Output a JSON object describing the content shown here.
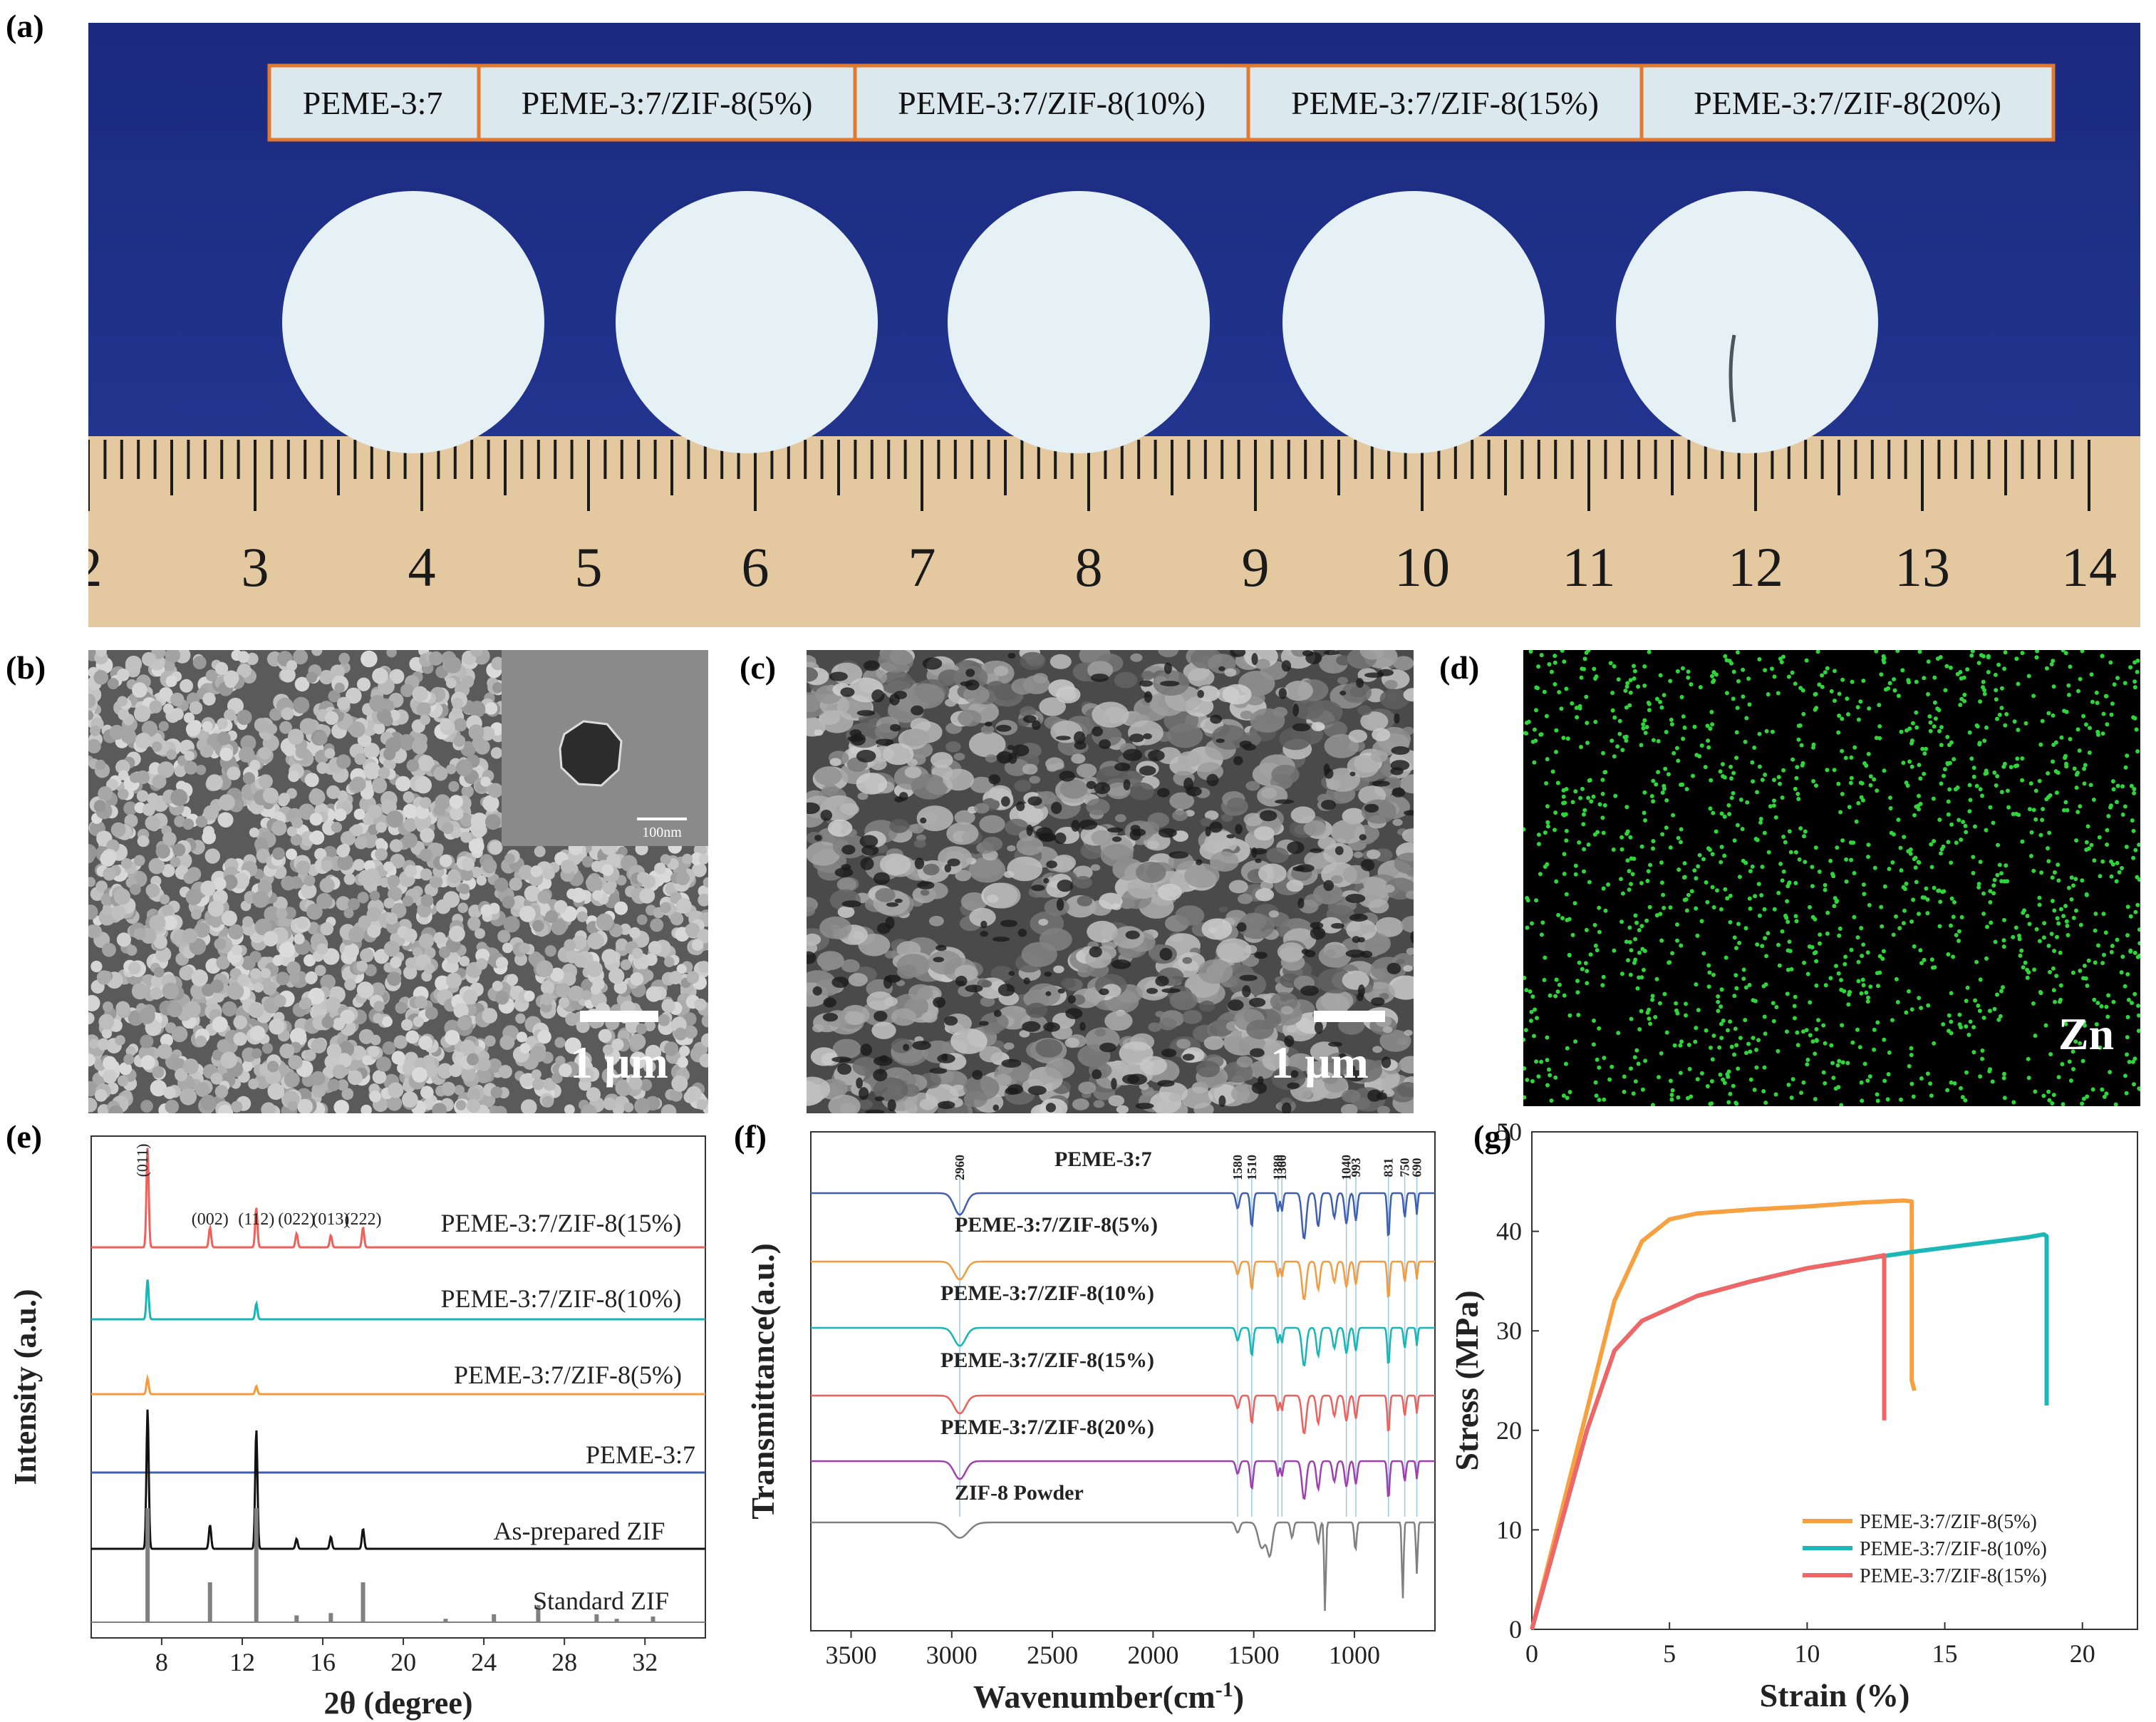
{
  "panel_labels": [
    "(a)",
    "(b)",
    "(c)",
    "(d)",
    "(e)",
    "(f)",
    "(g)"
  ],
  "photo_a": {
    "sample_labels": [
      "PEME-3:7",
      "PEME-3:7/ZIF-8(5%)",
      "PEME-3:7/ZIF-8(10%)",
      "PEME-3:7/ZIF-8(15%)",
      "PEME-3:7/ZIF-8(20%)"
    ],
    "ruler_numbers": [
      "2",
      "3",
      "4",
      "5",
      "6",
      "7",
      "8",
      "9",
      "10",
      "11",
      "12",
      "13",
      "14"
    ],
    "colors": {
      "background": "#1e2f86",
      "membrane": "#e6f1f6",
      "ruler": "#e4c9a0",
      "label_border": "#e07a30"
    }
  },
  "sem_b": {
    "scale_bar": "1 μm",
    "inset_scale": "100nm"
  },
  "sem_c": {
    "scale_bar": "1 μm"
  },
  "eds_d": {
    "element": "Zn",
    "dot_color": "#2fd53a"
  },
  "chart_data": [
    {
      "panel": "(e)",
      "type": "line",
      "xlabel": "2θ (degree)",
      "ylabel": "Intensity (a.u.)",
      "xlim": [
        4.5,
        35
      ],
      "xticks": [
        "8",
        "12",
        "16",
        "20",
        "24",
        "28",
        "32"
      ],
      "series": [
        {
          "name": "PEME-3:7/ZIF-8(15%)",
          "color": "#f0605a",
          "peaks": [
            [
              7.3,
              5
            ],
            [
              10.4,
              1
            ],
            [
              12.7,
              2
            ],
            [
              14.7,
              0.7
            ],
            [
              16.4,
              0.6
            ],
            [
              18.0,
              1
            ]
          ]
        },
        {
          "name": "PEME-3:7/ZIF-8(10%)",
          "color": "#17b5b5",
          "peaks": [
            [
              7.3,
              2
            ],
            [
              12.7,
              0.8
            ]
          ]
        },
        {
          "name": "PEME-3:7/ZIF-8(5%)",
          "color": "#f59a3e",
          "peaks": [
            [
              7.3,
              0.8
            ],
            [
              12.7,
              0.4
            ]
          ]
        },
        {
          "name": "PEME-3:7",
          "color": "#3f5fb5",
          "peaks": []
        },
        {
          "name": "As-prepared ZIF",
          "color": "#111111",
          "peaks": [
            [
              7.3,
              7
            ],
            [
              10.4,
              1.2
            ],
            [
              12.7,
              6
            ],
            [
              14.7,
              0.5
            ],
            [
              16.4,
              0.6
            ],
            [
              18.0,
              1
            ]
          ]
        },
        {
          "name": "Standard ZIF",
          "color": "#808080",
          "peaks": [
            [
              7.3,
              10
            ],
            [
              10.4,
              3.5
            ],
            [
              12.7,
              10
            ],
            [
              14.7,
              0.6
            ],
            [
              16.4,
              0.8
            ],
            [
              18.0,
              3.5
            ],
            [
              22.1,
              0.3
            ],
            [
              24.5,
              0.7
            ],
            [
              26.7,
              1.5
            ],
            [
              29.6,
              0.7
            ],
            [
              30.6,
              0.3
            ],
            [
              32.4,
              0.5
            ]
          ]
        }
      ],
      "annotations": [
        {
          "text": "(011)",
          "x": 7.3
        },
        {
          "text": "(002)",
          "x": 10.4
        },
        {
          "text": "(112)",
          "x": 12.7
        },
        {
          "text": "(022)",
          "x": 14.7
        },
        {
          "text": "(013)",
          "x": 16.4
        },
        {
          "text": "(222)",
          "x": 18.0
        }
      ]
    },
    {
      "panel": "(f)",
      "type": "line",
      "xlabel": "Wavenumber(cm",
      "xlabel_sup": "-1",
      "xlabel_end": ")",
      "ylabel": "Transmittance(a.u.)",
      "xlim": [
        3700,
        600
      ],
      "xticks": [
        "3500",
        "3000",
        "2500",
        "2000",
        "1500",
        "1000"
      ],
      "series": [
        {
          "name": "PEME-3:7",
          "color": "#3f5fb5"
        },
        {
          "name": "PEME-3:7/ZIF-8(5%)",
          "color": "#f59a3e"
        },
        {
          "name": "PEME-3:7/ZIF-8(10%)",
          "color": "#17b5b5"
        },
        {
          "name": "PEME-3:7/ZIF-8(15%)",
          "color": "#f0605a"
        },
        {
          "name": "PEME-3:7/ZIF-8(20%)",
          "color": "#a040b0"
        },
        {
          "name": "ZIF-8 Powder",
          "color": "#808080"
        }
      ],
      "annotations": [
        {
          "text": "2960",
          "x": 2960
        },
        {
          "text": "1580",
          "x": 1580
        },
        {
          "text": "1510",
          "x": 1510
        },
        {
          "text": "1380",
          "x": 1380
        },
        {
          "text": "1360",
          "x": 1360
        },
        {
          "text": "1040",
          "x": 1040
        },
        {
          "text": "993",
          "x": 993
        },
        {
          "text": "831",
          "x": 831
        },
        {
          "text": "750",
          "x": 750
        },
        {
          "text": "690",
          "x": 690
        }
      ]
    },
    {
      "panel": "(g)",
      "type": "line",
      "xlabel": "Strain (%)",
      "ylabel": "Stress (MPa)",
      "xlim": [
        0,
        22
      ],
      "ylim": [
        0,
        50
      ],
      "xticks": [
        "0",
        "5",
        "10",
        "15",
        "20"
      ],
      "yticks": [
        "0",
        "10",
        "20",
        "30",
        "40",
        "50"
      ],
      "legend_position": "bottom-right",
      "series": [
        {
          "name": "PEME-3:7/ZIF-8(5%)",
          "color": "#f7a03f",
          "x": [
            0,
            1,
            2,
            3,
            4,
            5,
            6,
            8,
            10,
            12,
            13.5,
            13.8,
            13.8,
            13.9
          ],
          "y": [
            0,
            11,
            22,
            33,
            39,
            41.2,
            41.8,
            42.2,
            42.5,
            42.9,
            43.1,
            43,
            25,
            24
          ]
        },
        {
          "name": "PEME-3:7/ZIF-8(10%)",
          "color": "#1cb8b8",
          "x": [
            0,
            1,
            2,
            3,
            4,
            6,
            8,
            10,
            12,
            14,
            16,
            18,
            18.6,
            18.7,
            18.7
          ],
          "y": [
            0,
            10,
            20,
            28,
            31,
            33.5,
            35,
            36.3,
            37.2,
            38,
            38.7,
            39.4,
            39.7,
            39.5,
            22.5
          ]
        },
        {
          "name": "PEME-3:7/ZIF-8(15%)",
          "color": "#f06565",
          "x": [
            0,
            1,
            2,
            3,
            4,
            6,
            8,
            10,
            12,
            12.8,
            12.8
          ],
          "y": [
            0,
            10,
            20,
            28,
            31,
            33.5,
            35,
            36.3,
            37.2,
            37.6,
            21
          ]
        }
      ]
    }
  ]
}
